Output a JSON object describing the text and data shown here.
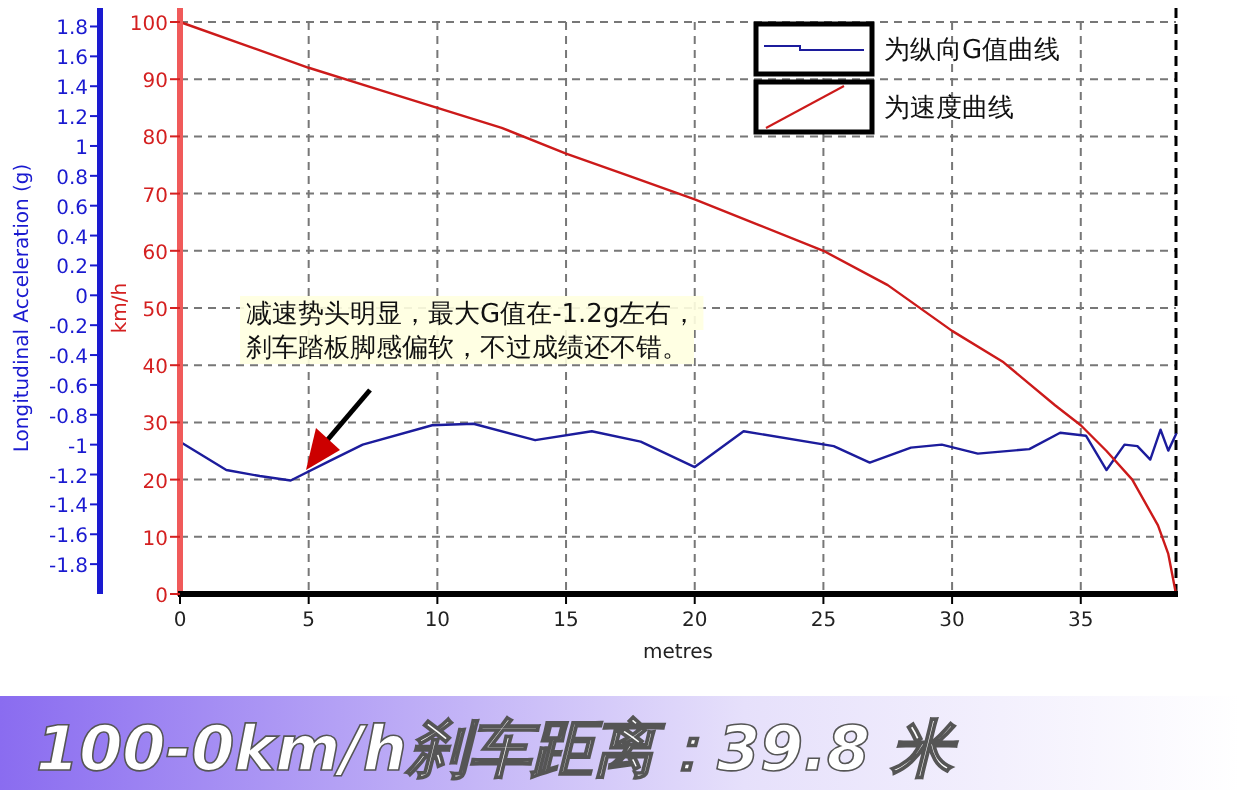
{
  "chart_data": {
    "type": "line",
    "title": "100-0km/h刹车距离：39.8 米",
    "xlabel": "metres",
    "ylabel": "km/h",
    "y2label": "Longitudinal Acceleration (g)",
    "xlim": [
      0,
      38.7
    ],
    "xticks": [
      0,
      5,
      10,
      15,
      20,
      25,
      30,
      35
    ],
    "ylim": [
      0,
      100
    ],
    "yticks": [
      0,
      10,
      20,
      30,
      40,
      50,
      60,
      70,
      80,
      90,
      100
    ],
    "y2lim": [
      -2.0,
      1.83
    ],
    "y2ticks": [
      -1.8,
      -1.6,
      -1.4,
      -1.2,
      -1,
      -0.8,
      -0.6,
      -0.4,
      -0.2,
      0,
      0.2,
      0.4,
      0.6,
      0.8,
      1,
      1.2,
      1.4,
      1.6,
      1.8
    ],
    "grid": true,
    "legend": "top right",
    "line_style": "solid",
    "marker": "none",
    "annotations": [
      "减速势头明显，最大G值在-1.2g左右，",
      "刹车踏板脚感偏软，不过成绩还不错。"
    ],
    "series": [
      {
        "name": "为纵向G值曲线",
        "color": "#1c1c9c",
        "axis": "y2",
        "x": [
          0,
          1.8,
          3.1,
          4.3,
          5.8,
          7.1,
          9.8,
          11.4,
          13.8,
          16.0,
          17.9,
          20.0,
          21.9,
          25.4,
          26.8,
          28.4,
          29.6,
          31.0,
          33.0,
          34.2,
          35.2,
          36.0,
          36.7,
          37.2,
          37.7,
          38.1,
          38.4,
          38.7
        ],
        "values": [
          -0.98,
          -1.17,
          -1.21,
          -1.24,
          -1.11,
          -1.0,
          -0.87,
          -0.86,
          -0.97,
          -0.91,
          -0.98,
          -1.15,
          -0.91,
          -1.01,
          -1.12,
          -1.02,
          -1.0,
          -1.06,
          -1.03,
          -0.92,
          -0.94,
          -1.17,
          -1.0,
          -1.01,
          -1.1,
          -0.9,
          -1.04,
          -0.93
        ]
      },
      {
        "name": "为速度曲线",
        "color": "#cc1a1a",
        "axis": "y",
        "x": [
          0,
          2.5,
          5,
          7.5,
          10,
          12.5,
          15,
          17.5,
          20,
          22.5,
          25,
          27.5,
          30,
          32,
          34,
          35,
          36,
          37,
          38,
          38.4,
          38.7
        ],
        "values": [
          100,
          96,
          92,
          88.5,
          85,
          81.5,
          77,
          73,
          69,
          64.5,
          60,
          54,
          46,
          40.5,
          33,
          29.5,
          25,
          20,
          12,
          7,
          0
        ]
      }
    ]
  }
}
